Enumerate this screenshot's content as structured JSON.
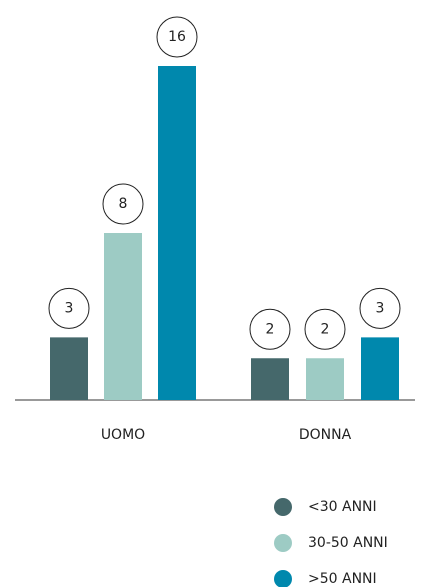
{
  "chart_data": {
    "type": "bar",
    "categories": [
      "UOMO",
      "DONNA"
    ],
    "series": [
      {
        "name": "<30 ANNI",
        "color": "#45686b",
        "values": [
          3,
          2
        ]
      },
      {
        "name": "30-50 ANNI",
        "color": "#9dcbc4",
        "values": [
          8,
          2
        ]
      },
      {
        "name": ">50 ANNI",
        "color": "#0088ad",
        "values": [
          16,
          3
        ]
      }
    ]
  }
}
